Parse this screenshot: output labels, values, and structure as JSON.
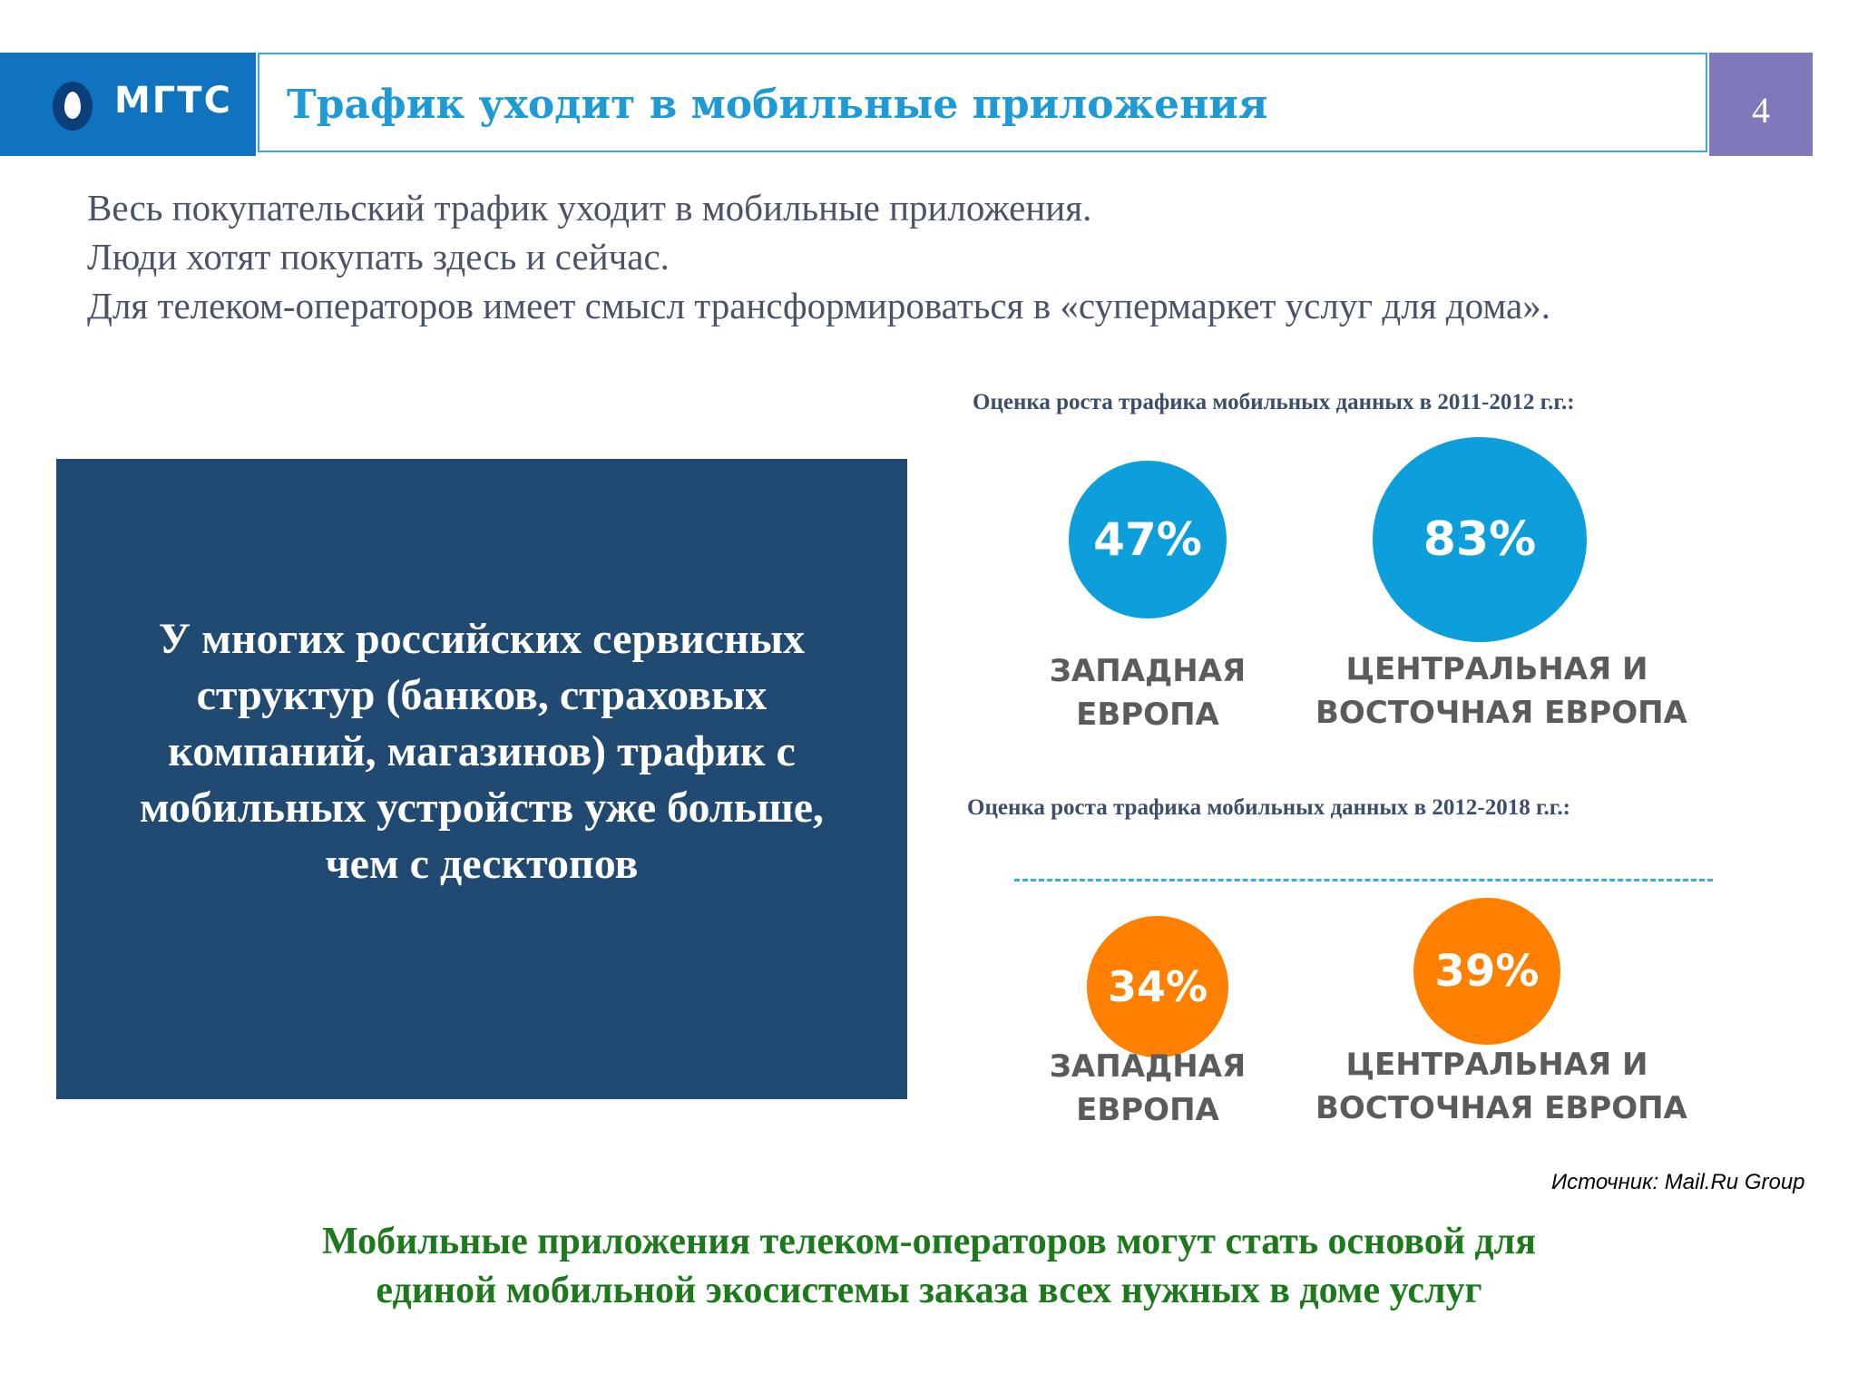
{
  "header": {
    "logo_text": "МГТС",
    "title": "Трафик уходит в мобильные приложения",
    "page_number": "4",
    "colors": {
      "logo_bg": "#0f73c0",
      "title_text": "#1e9ad6",
      "page_num_bg": "#7f79bb"
    }
  },
  "intro": {
    "lines": [
      "Весь покупательский трафик уходит в мобильные приложения.",
      "Люди хотят покупать здесь и сейчас.",
      "Для телеком-операторов имеет смысл  трансформироваться в «супермаркет услуг для дома»."
    ]
  },
  "callout": {
    "lines": [
      "У многих российских сервисных",
      "структур (банков, страховых",
      "компаний, магазинов) трафик с",
      "мобильных устройств уже больше,",
      "чем с десктопов"
    ],
    "background": "#214a73"
  },
  "charts": [
    {
      "title": "Оценка роста трафика мобильных данных в 2011-2012 г.г.:",
      "color": "#0d9fdc",
      "items": [
        {
          "value_label": "47%",
          "region_lines": [
            "ЗАПАДНАЯ",
            "ЕВРОПА"
          ]
        },
        {
          "value_label": "83%",
          "region_lines": [
            "ЦЕНТРАЛЬНАЯ И",
            "ВОСТОЧНАЯ ЕВРОПА"
          ]
        }
      ]
    },
    {
      "title": "Оценка роста трафика мобильных данных в 2012-2018 г.г.:",
      "color": "#ff8000",
      "items": [
        {
          "value_label": "34%",
          "region_lines": [
            "ЗАПАДНАЯ",
            "ЕВРОПА"
          ]
        },
        {
          "value_label": "39%",
          "region_lines": [
            "ЦЕНТРАЛЬНАЯ И",
            "ВОСТОЧНАЯ ЕВРОПА"
          ]
        }
      ]
    }
  ],
  "source": "Источник: Mail.Ru Group",
  "conclusion": {
    "lines": [
      "Мобильные приложения телеком-операторов могут стать основой для",
      "единой мобильной экосистемы заказа всех нужных в доме услуг"
    ],
    "color": "#1c7a1c"
  }
}
